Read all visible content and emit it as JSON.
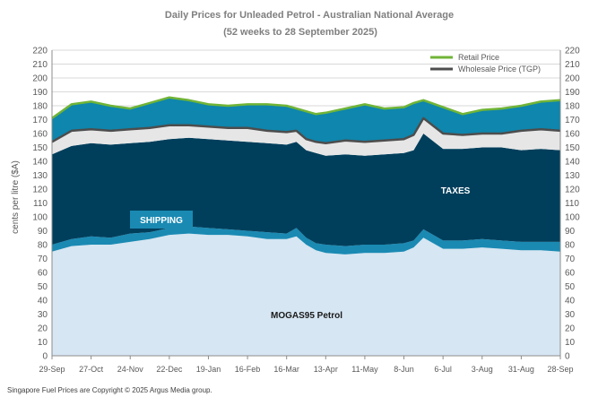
{
  "colors": {
    "mogas": "#d6e6f2",
    "shipping": "#1a8ab3",
    "taxes": "#003f5c",
    "margin_band": "#e6e6e6",
    "retail_margin": "#0e86ad",
    "retail_line": "#70b437",
    "wholesale_line": "#4d4d4d",
    "shipping_label_box": "#1a8ab3"
  },
  "footer": "Singapore Fuel Prices are Copyright © 2025 Argus Media group.",
  "chart_data": {
    "type": "area",
    "title": "Daily Prices for Unleaded Petrol - Australian National Average",
    "subtitle": "(52 weeks to 28 September 2025)",
    "ylabel": "cents per litre ($A)",
    "ylim": [
      0,
      220
    ],
    "yticks": [
      0,
      10,
      20,
      30,
      40,
      50,
      60,
      70,
      80,
      90,
      100,
      110,
      120,
      130,
      140,
      150,
      160,
      170,
      180,
      190,
      200,
      210,
      220
    ],
    "xlim": [
      0,
      52
    ],
    "xticks": [
      {
        "x": 0,
        "label": "29-Sep"
      },
      {
        "x": 4,
        "label": "27-Oct"
      },
      {
        "x": 8,
        "label": "24-Nov"
      },
      {
        "x": 12,
        "label": "22-Dec"
      },
      {
        "x": 16,
        "label": "19-Jan"
      },
      {
        "x": 20,
        "label": "16-Feb"
      },
      {
        "x": 24,
        "label": "16-Mar"
      },
      {
        "x": 28,
        "label": "13-Apr"
      },
      {
        "x": 32,
        "label": "11-May"
      },
      {
        "x": 36,
        "label": "8-Jun"
      },
      {
        "x": 40,
        "label": "6-Jul"
      },
      {
        "x": 44,
        "label": "3-Aug"
      },
      {
        "x": 48,
        "label": "31-Aug"
      },
      {
        "x": 52,
        "label": "28-Sep"
      }
    ],
    "grid": true,
    "legend_position": "top-right",
    "legend": [
      {
        "label": "Retail Price",
        "color": "#70b437"
      },
      {
        "label": "Wholesale Price (TGP)",
        "color": "#4d4d4d"
      }
    ],
    "annotations": {
      "shipping": "SHIPPING",
      "taxes": "TAXES",
      "mogas": "MOGAS95  Petrol"
    },
    "x": [
      0,
      2,
      4,
      6,
      8,
      10,
      12,
      14,
      16,
      18,
      20,
      22,
      24,
      25,
      26,
      27,
      28,
      30,
      32,
      34,
      36,
      37,
      38,
      40,
      42,
      44,
      46,
      48,
      50,
      52
    ],
    "series": [
      {
        "key": "mogas",
        "values": [
          75,
          79,
          80,
          80,
          82,
          84,
          87,
          88,
          87,
          87,
          86,
          84,
          84,
          86,
          80,
          76,
          74,
          73,
          74,
          74,
          75,
          78,
          85,
          77,
          77,
          78,
          77,
          76,
          76,
          75
        ]
      },
      {
        "key": "shipping_top",
        "values": [
          80,
          84,
          86,
          85,
          88,
          89,
          92,
          93,
          92,
          91,
          90,
          89,
          88,
          92,
          85,
          81,
          80,
          79,
          80,
          80,
          81,
          83,
          91,
          83,
          83,
          84,
          83,
          82,
          82,
          82
        ]
      },
      {
        "key": "taxes_top",
        "values": [
          145,
          151,
          153,
          152,
          153,
          154,
          156,
          157,
          156,
          155,
          154,
          153,
          152,
          154,
          148,
          146,
          144,
          145,
          144,
          145,
          146,
          148,
          160,
          149,
          149,
          150,
          150,
          148,
          149,
          148
        ]
      },
      {
        "key": "wholesale",
        "values": [
          154,
          162,
          163,
          162,
          163,
          164,
          166,
          166,
          165,
          164,
          164,
          162,
          161,
          162,
          156,
          154,
          153,
          155,
          154,
          155,
          156,
          159,
          171,
          160,
          159,
          160,
          160,
          162,
          163,
          162
        ]
      },
      {
        "key": "retail",
        "values": [
          171,
          181,
          183,
          180,
          178,
          182,
          186,
          184,
          181,
          180,
          181,
          181,
          180,
          178,
          176,
          174,
          175,
          178,
          181,
          178,
          179,
          182,
          184,
          179,
          174,
          177,
          178,
          180,
          183,
          184
        ]
      }
    ]
  }
}
